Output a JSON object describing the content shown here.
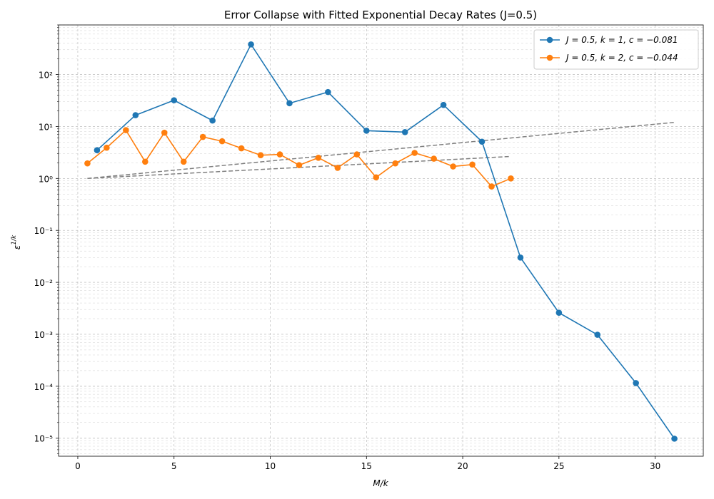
{
  "chart_data": {
    "type": "line",
    "title": "Error Collapse with Fitted Exponential Decay Rates (J=0.5)",
    "xlabel": "M/k",
    "ylabel": "ε^{1/k}",
    "xlim": [
      -1.0,
      32.5
    ],
    "ylim": [
      4.5e-06,
      900
    ],
    "y_scale": "log",
    "grid": true,
    "legend_position": "top-right",
    "x_ticks": [
      0,
      5,
      10,
      15,
      20,
      25,
      30
    ],
    "x_tick_labels": [
      "0",
      "5",
      "10",
      "15",
      "20",
      "25",
      "30"
    ],
    "y_ticks": [
      1e-05,
      0.0001,
      0.001,
      0.01,
      0.1,
      1,
      10,
      100
    ],
    "y_tick_labels": [
      "10⁻⁵",
      "10⁻⁴",
      "10⁻³",
      "10⁻²",
      "10⁻¹",
      "10⁰",
      "10¹",
      "10²"
    ],
    "series": [
      {
        "name": "J = 0.5,  k = 1,  c = −0.081",
        "color": "#1f77b4",
        "x": [
          1,
          3,
          5,
          7,
          9,
          11,
          13,
          15,
          17,
          19,
          21,
          23,
          25,
          27,
          29,
          31
        ],
        "y": [
          3.5,
          16.5,
          32,
          13,
          380,
          28,
          46,
          8.3,
          7.8,
          26,
          5.1,
          0.03,
          0.0026,
          0.00098,
          0.000115,
          9.8e-06
        ]
      },
      {
        "name": "J = 0.5,  k = 2,  c = −0.044",
        "color": "#ff7f0e",
        "x": [
          0.5,
          1.5,
          2.5,
          3.5,
          4.5,
          5.5,
          6.5,
          7.5,
          8.5,
          9.5,
          10.5,
          11.5,
          12.5,
          13.5,
          14.5,
          15.5,
          16.5,
          17.5,
          18.5,
          19.5,
          20.5,
          21.5,
          22.5
        ],
        "y": [
          1.95,
          3.9,
          8.5,
          2.1,
          7.6,
          2.1,
          6.3,
          5.2,
          3.8,
          2.8,
          2.9,
          1.8,
          2.5,
          1.6,
          2.9,
          1.05,
          1.95,
          3.1,
          2.4,
          1.7,
          1.85,
          0.7,
          1.0
        ]
      }
    ],
    "fit_lines": [
      {
        "color": "#808080",
        "x": [
          0.5,
          31
        ],
        "y": [
          1.0,
          12.0
        ]
      },
      {
        "color": "#808080",
        "x": [
          0.5,
          22.5
        ],
        "y": [
          1.0,
          2.65
        ]
      }
    ]
  }
}
